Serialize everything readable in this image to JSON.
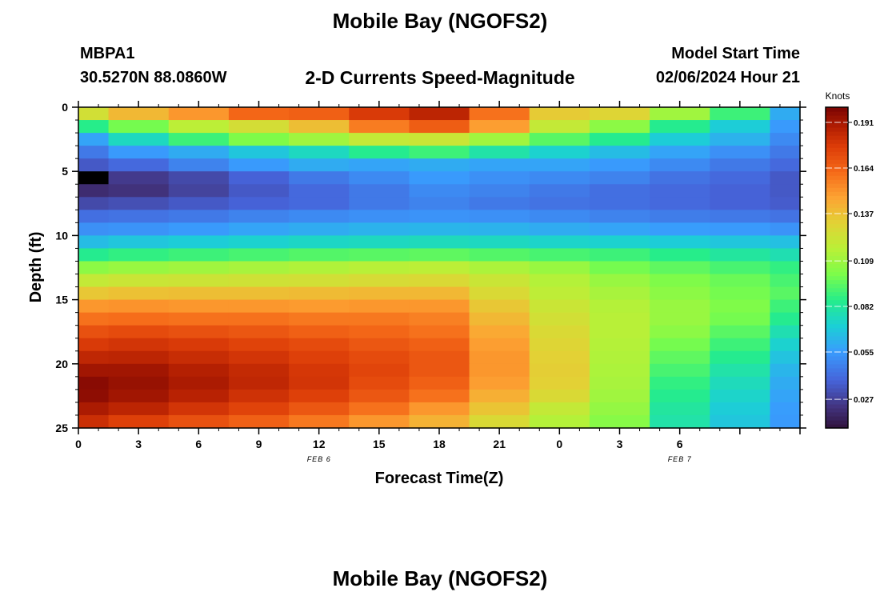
{
  "header": {
    "title": "Mobile Bay (NGOFS2)",
    "station_id": "MBPA1",
    "coords": "30.5270N  88.0860W",
    "product": "2-D Currents Speed-Magnitude",
    "start_label": "Model Start Time",
    "start_value": "02/06/2024 Hour 21"
  },
  "footer": {
    "title": "Mobile Bay (NGOFS2)"
  },
  "chart_data": {
    "type": "heatmap",
    "xlabel": "Forecast Time(Z)",
    "ylabel": "Depth (ft)",
    "x_ticks": [
      "0",
      "3",
      "6",
      "9",
      "12",
      "15",
      "18",
      "21",
      "0",
      "3",
      "6"
    ],
    "date_labels": [
      "FEB 6",
      "FEB 7"
    ],
    "y_ticks": [
      "0",
      "5",
      "10",
      "15",
      "20",
      "25"
    ],
    "ylim": [
      0,
      25
    ],
    "x_hours": [
      0,
      1.5,
      4.5,
      7.5,
      10.5,
      13.5,
      16.5,
      19.5,
      22.5,
      25.5,
      28.5,
      31.5,
      34.5,
      36
    ],
    "depths": [
      0,
      1,
      2,
      3,
      4,
      5,
      6,
      7,
      8,
      9,
      10,
      11,
      12,
      13,
      14,
      15,
      16,
      17,
      18,
      19,
      20,
      21,
      22,
      23,
      24,
      25
    ],
    "colorbar": {
      "label": "Knots",
      "ticks": [
        "0.027",
        "0.055",
        "0.082",
        "0.109",
        "0.137",
        "0.164",
        "0.191"
      ],
      "range": [
        0.01,
        0.2
      ]
    },
    "values": [
      [
        0.125,
        0.14,
        0.15,
        0.163,
        0.165,
        0.178,
        0.186,
        0.16,
        0.134,
        0.13,
        0.11,
        0.09,
        0.06
      ],
      [
        0.086,
        0.1,
        0.117,
        0.126,
        0.138,
        0.157,
        0.166,
        0.148,
        0.12,
        0.105,
        0.085,
        0.07,
        0.055
      ],
      [
        0.058,
        0.075,
        0.09,
        0.102,
        0.11,
        0.12,
        0.122,
        0.11,
        0.095,
        0.085,
        0.07,
        0.062,
        0.05
      ],
      [
        0.045,
        0.055,
        0.06,
        0.068,
        0.075,
        0.085,
        0.09,
        0.08,
        0.072,
        0.065,
        0.058,
        0.052,
        0.045
      ],
      [
        0.035,
        0.04,
        0.048,
        0.055,
        0.06,
        0.058,
        0.06,
        0.058,
        0.058,
        0.055,
        0.05,
        0.045,
        0.04
      ],
      [
        0.0,
        0.025,
        0.03,
        0.038,
        0.045,
        0.05,
        0.055,
        0.052,
        0.05,
        0.048,
        0.043,
        0.04,
        0.035
      ],
      [
        0.02,
        0.022,
        0.028,
        0.035,
        0.04,
        0.045,
        0.05,
        0.048,
        0.045,
        0.042,
        0.04,
        0.038,
        0.035
      ],
      [
        0.03,
        0.032,
        0.035,
        0.038,
        0.04,
        0.045,
        0.048,
        0.045,
        0.043,
        0.042,
        0.04,
        0.038,
        0.036
      ],
      [
        0.042,
        0.043,
        0.045,
        0.048,
        0.05,
        0.052,
        0.053,
        0.052,
        0.05,
        0.048,
        0.046,
        0.045,
        0.043
      ],
      [
        0.052,
        0.053,
        0.055,
        0.058,
        0.06,
        0.062,
        0.063,
        0.062,
        0.06,
        0.058,
        0.056,
        0.055,
        0.053
      ],
      [
        0.065,
        0.068,
        0.07,
        0.072,
        0.074,
        0.075,
        0.076,
        0.075,
        0.073,
        0.072,
        0.07,
        0.068,
        0.066
      ],
      [
        0.085,
        0.088,
        0.09,
        0.092,
        0.094,
        0.095,
        0.096,
        0.094,
        0.092,
        0.09,
        0.086,
        0.082,
        0.078
      ],
      [
        0.105,
        0.108,
        0.11,
        0.112,
        0.114,
        0.116,
        0.117,
        0.113,
        0.108,
        0.1,
        0.096,
        0.092,
        0.088
      ],
      [
        0.12,
        0.122,
        0.123,
        0.124,
        0.125,
        0.127,
        0.128,
        0.122,
        0.115,
        0.108,
        0.102,
        0.098,
        0.092
      ],
      [
        0.135,
        0.137,
        0.138,
        0.138,
        0.139,
        0.14,
        0.14,
        0.128,
        0.118,
        0.112,
        0.105,
        0.1,
        0.095
      ],
      [
        0.15,
        0.151,
        0.15,
        0.15,
        0.149,
        0.15,
        0.15,
        0.135,
        0.122,
        0.115,
        0.108,
        0.102,
        0.09
      ],
      [
        0.16,
        0.161,
        0.16,
        0.16,
        0.158,
        0.158,
        0.156,
        0.14,
        0.125,
        0.116,
        0.108,
        0.1,
        0.085
      ],
      [
        0.17,
        0.172,
        0.17,
        0.168,
        0.165,
        0.163,
        0.16,
        0.145,
        0.128,
        0.116,
        0.105,
        0.095,
        0.078
      ],
      [
        0.178,
        0.18,
        0.178,
        0.175,
        0.172,
        0.168,
        0.165,
        0.148,
        0.13,
        0.115,
        0.1,
        0.09,
        0.072
      ],
      [
        0.185,
        0.186,
        0.183,
        0.18,
        0.176,
        0.172,
        0.168,
        0.15,
        0.132,
        0.114,
        0.096,
        0.085,
        0.067
      ],
      [
        0.192,
        0.192,
        0.188,
        0.184,
        0.179,
        0.174,
        0.168,
        0.15,
        0.133,
        0.113,
        0.092,
        0.08,
        0.063
      ],
      [
        0.197,
        0.194,
        0.19,
        0.185,
        0.18,
        0.172,
        0.165,
        0.148,
        0.132,
        0.112,
        0.088,
        0.076,
        0.06
      ],
      [
        0.196,
        0.192,
        0.187,
        0.181,
        0.176,
        0.168,
        0.16,
        0.143,
        0.128,
        0.11,
        0.085,
        0.073,
        0.058
      ],
      [
        0.19,
        0.186,
        0.18,
        0.175,
        0.168,
        0.16,
        0.15,
        0.136,
        0.12,
        0.107,
        0.082,
        0.07,
        0.056
      ],
      [
        0.182,
        0.176,
        0.17,
        0.165,
        0.158,
        0.15,
        0.142,
        0.128,
        0.115,
        0.104,
        0.08,
        0.068,
        0.055
      ]
    ]
  }
}
